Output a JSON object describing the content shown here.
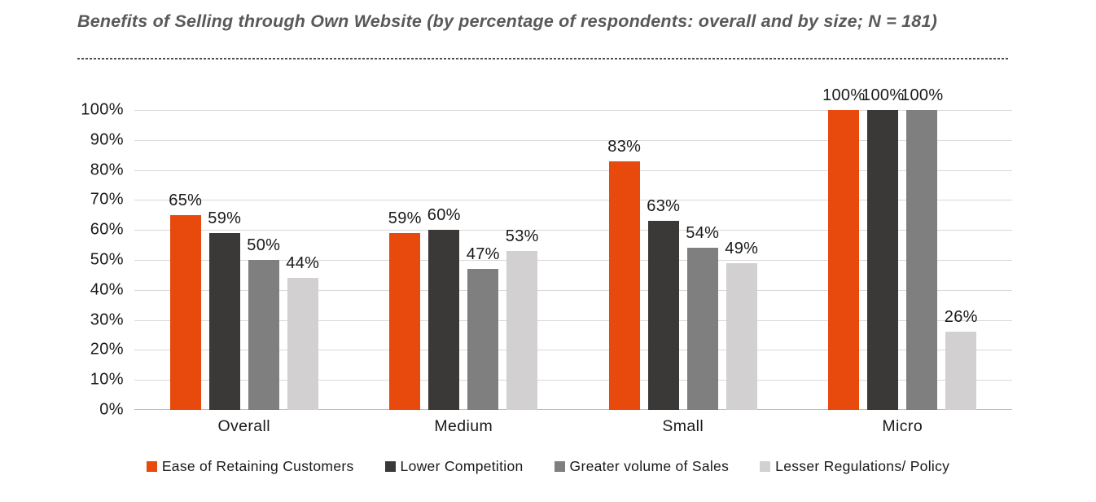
{
  "chart_data": {
    "type": "bar",
    "title": "Benefits of Selling through Own Website (by percentage of respondents: overall and by size; N = 181)",
    "categories": [
      "Overall",
      "Medium",
      "Small",
      "Micro"
    ],
    "series": [
      {
        "name": "Ease of Retaining Customers",
        "color": "#E8490D",
        "values": [
          65,
          59,
          83,
          100
        ]
      },
      {
        "name": "Lower Competition",
        "color": "#3B3838",
        "values": [
          59,
          60,
          63,
          100
        ]
      },
      {
        "name": "Greater volume of Sales",
        "color": "#7F7F7F",
        "values": [
          50,
          47,
          54,
          100
        ]
      },
      {
        "name": "Lesser Regulations/ Policy",
        "color": "#D2D0D0",
        "values": [
          44,
          53,
          49,
          26
        ]
      }
    ],
    "value_suffix": "%",
    "data_labels": true,
    "ylim": [
      0,
      100
    ],
    "yticks": [
      0,
      10,
      20,
      30,
      40,
      50,
      60,
      70,
      80,
      90,
      100
    ],
    "ytick_labels": [
      "0%",
      "10%",
      "20%",
      "30%",
      "40%",
      "50%",
      "60%",
      "70%",
      "80%",
      "90%",
      "100%"
    ],
    "grid": "horizontal",
    "legend_position": "bottom",
    "colors": {
      "gridline": "#D9D9D9",
      "baseline": "#BFBFBF",
      "title": "#595959",
      "text": "#1A1A1A",
      "background": "#FFFFFF"
    }
  }
}
